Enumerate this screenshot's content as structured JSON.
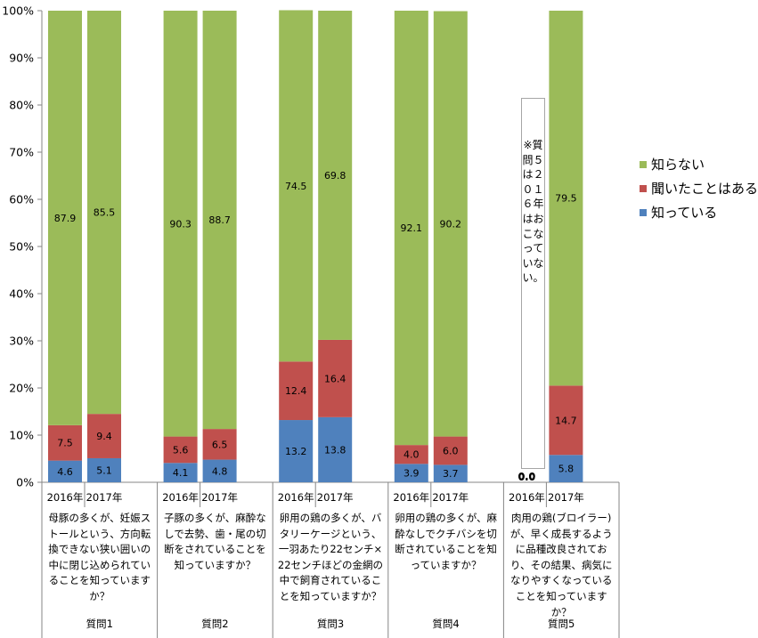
{
  "chart_data": {
    "type": "bar",
    "stacked": true,
    "normalized_percent": true,
    "ylim": [
      0,
      100
    ],
    "y_ticks": [
      "0%",
      "10%",
      "20%",
      "30%",
      "40%",
      "50%",
      "60%",
      "70%",
      "80%",
      "90%",
      "100%"
    ],
    "grid": false,
    "legend_position": "right",
    "series": [
      {
        "name": "知っている",
        "color": "#4f81bd"
      },
      {
        "name": "聞いたことはある",
        "color": "#c0504d"
      },
      {
        "name": "知らない",
        "color": "#9bbb59"
      }
    ],
    "legend_order": [
      2,
      1,
      0
    ],
    "groups": [
      {
        "question": "母豚の多くが、妊娠ストールという、方向転換できない狭い囲いの中に閉じ込められていることを知っていますか？",
        "label": "質問1",
        "bars": [
          {
            "year": "2016年",
            "values": [
              4.6,
              7.5,
              87.9
            ],
            "labels": [
              "4.6",
              "7.5",
              "87.9"
            ]
          },
          {
            "year": "2017年",
            "values": [
              5.1,
              9.4,
              85.5
            ],
            "labels": [
              "5.1",
              "9.4",
              "85.5"
            ]
          }
        ]
      },
      {
        "question": "子豚の多くが、麻酔なしで去勢、歯・尾の切断をされていることを知っていますか？",
        "label": "質問2",
        "bars": [
          {
            "year": "2016年",
            "values": [
              4.1,
              5.6,
              90.3
            ],
            "labels": [
              "4.1",
              "5.6",
              "90.3"
            ]
          },
          {
            "year": "2017年",
            "values": [
              4.8,
              6.5,
              88.7
            ],
            "labels": [
              "4.8",
              "6.5",
              "88.7"
            ]
          }
        ]
      },
      {
        "question": "卵用の鶏の多くが、バタリーケージという、一羽あたり22センチ×22センチほどの金網の中で飼育されていることを知っていますか？",
        "label": "質問3",
        "bars": [
          {
            "year": "2016年",
            "values": [
              13.2,
              12.4,
              74.5
            ],
            "labels": [
              "13.2",
              "12.4",
              "74.5"
            ]
          },
          {
            "year": "2017年",
            "values": [
              13.8,
              16.4,
              69.8
            ],
            "labels": [
              "13.8",
              "16.4",
              "69.8"
            ]
          }
        ]
      },
      {
        "question": "卵用の鶏の多くが、麻酔なしでクチバシを切断されていることを知っていますか？",
        "label": "質問4",
        "bars": [
          {
            "year": "2016年",
            "values": [
              3.9,
              4.0,
              92.1
            ],
            "labels": [
              "3.9",
              "4.0",
              "92.1"
            ]
          },
          {
            "year": "2017年",
            "values": [
              3.7,
              6.0,
              90.2
            ],
            "labels": [
              "3.7",
              "6.0",
              "90.2"
            ]
          }
        ]
      },
      {
        "question": "肉用の鶏(ブロイラー)が、早く成長するように品種改良されており、その結果、病気になりやすくなっていることを知っていますか？",
        "label": "質問5",
        "bars": [
          {
            "year": "2016年",
            "values": [
              0,
              0,
              0
            ],
            "labels": [
              "0.0",
              "0.0",
              "0.0"
            ]
          },
          {
            "year": "2017年",
            "values": [
              5.8,
              14.7,
              79.5
            ],
            "labels": [
              "5.8",
              "14.7",
              "79.5"
            ]
          }
        ]
      }
    ],
    "note": "※質問５は２０１６年はおこなっていない。"
  }
}
